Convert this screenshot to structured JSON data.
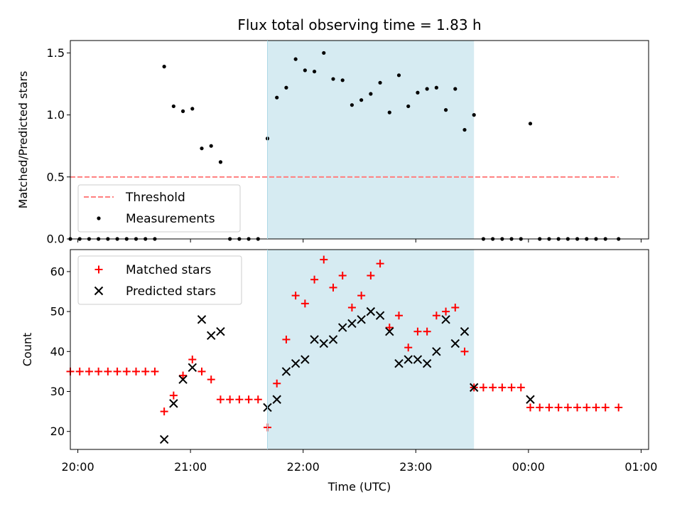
{
  "title": "Flux total observing time = 1.83 h",
  "xlabel": "Time (UTC)",
  "x_ticks": [
    "20:00",
    "21:00",
    "22:00",
    "23:00",
    "00:00",
    "01:00"
  ],
  "colors": {
    "shade": "#add8e6",
    "threshold": "#ff7f7f",
    "measurement": "#000000",
    "matched": "#ff0000",
    "predicted": "#000000"
  },
  "chart_data": [
    {
      "type": "scatter",
      "ylabel": "Matched/Predicted stars",
      "ylim": [
        0,
        1.6
      ],
      "y_ticks": [
        "0.0",
        "0.5",
        "1.0",
        "1.5"
      ],
      "x_range": [
        "19:56",
        "01:04"
      ],
      "shaded_interval": [
        "21:41",
        "23:31"
      ],
      "legend": {
        "placement": "lower-left",
        "items": [
          "Threshold",
          "Measurements"
        ]
      },
      "threshold": {
        "name": "Threshold",
        "value": 0.5,
        "x": [
          "19:56",
          "00:48"
        ]
      },
      "series": [
        {
          "name": "Measurements",
          "x": [
            "19:56",
            "20:01",
            "20:06",
            "20:11",
            "20:16",
            "20:21",
            "20:26",
            "20:31",
            "20:36",
            "20:41",
            "20:46",
            "20:51",
            "20:56",
            "21:01",
            "21:06",
            "21:11",
            "21:16",
            "21:21",
            "21:26",
            "21:31",
            "21:36",
            "21:41",
            "21:46",
            "21:51",
            "21:56",
            "22:01",
            "22:06",
            "22:11",
            "22:16",
            "22:21",
            "22:26",
            "22:31",
            "22:36",
            "22:41",
            "22:46",
            "22:51",
            "22:56",
            "23:01",
            "23:06",
            "23:11",
            "23:16",
            "23:21",
            "23:26",
            "23:31",
            "23:36",
            "23:41",
            "23:46",
            "23:51",
            "23:56",
            "00:01",
            "00:06",
            "00:11",
            "00:16",
            "00:21",
            "00:26",
            "00:31",
            "00:36",
            "00:41",
            "00:48"
          ],
          "y": [
            0,
            0,
            0,
            0,
            0,
            0,
            0,
            0,
            0,
            0,
            1.39,
            1.07,
            1.03,
            1.05,
            0.73,
            0.75,
            0.62,
            0,
            0,
            0,
            0,
            0.81,
            1.14,
            1.22,
            1.45,
            1.36,
            1.35,
            1.5,
            1.29,
            1.28,
            1.08,
            1.12,
            1.17,
            1.26,
            1.02,
            1.32,
            1.07,
            1.18,
            1.21,
            1.22,
            1.04,
            1.21,
            0.88,
            1.0,
            0,
            0,
            0,
            0,
            0,
            0.93,
            0,
            0,
            0,
            0,
            0,
            0,
            0,
            0,
            0
          ]
        }
      ]
    },
    {
      "type": "scatter",
      "ylabel": "Count",
      "ylim": [
        15.5,
        65.5
      ],
      "y_ticks": [
        "20",
        "30",
        "40",
        "50",
        "60"
      ],
      "x_range": [
        "19:56",
        "01:04"
      ],
      "shaded_interval": [
        "21:41",
        "23:31"
      ],
      "legend": {
        "placement": "upper-left",
        "items": [
          "Matched stars",
          "Predicted stars"
        ]
      },
      "series": [
        {
          "name": "Matched stars",
          "x": [
            "19:56",
            "20:01",
            "20:06",
            "20:11",
            "20:16",
            "20:21",
            "20:26",
            "20:31",
            "20:36",
            "20:41",
            "20:46",
            "20:51",
            "20:56",
            "21:01",
            "21:06",
            "21:11",
            "21:16",
            "21:21",
            "21:26",
            "21:31",
            "21:36",
            "21:41",
            "21:46",
            "21:51",
            "21:56",
            "22:01",
            "22:06",
            "22:11",
            "22:16",
            "22:21",
            "22:26",
            "22:31",
            "22:36",
            "22:41",
            "22:46",
            "22:51",
            "22:56",
            "23:01",
            "23:06",
            "23:11",
            "23:16",
            "23:21",
            "23:26",
            "23:31",
            "23:36",
            "23:41",
            "23:46",
            "23:51",
            "23:56",
            "00:01",
            "00:06",
            "00:11",
            "00:16",
            "00:21",
            "00:26",
            "00:31",
            "00:36",
            "00:41",
            "00:48"
          ],
          "y": [
            35,
            35,
            35,
            35,
            35,
            35,
            35,
            35,
            35,
            35,
            25,
            29,
            34,
            38,
            35,
            33,
            28,
            28,
            28,
            28,
            28,
            21,
            32,
            43,
            54,
            52,
            58,
            63,
            56,
            59,
            51,
            54,
            59,
            62,
            46,
            49,
            41,
            45,
            45,
            49,
            50,
            51,
            40,
            31,
            31,
            31,
            31,
            31,
            31,
            26,
            26,
            26,
            26,
            26,
            26,
            26,
            26,
            26,
            26
          ]
        },
        {
          "name": "Predicted stars",
          "x": [
            "20:46",
            "20:51",
            "20:56",
            "21:01",
            "21:06",
            "21:11",
            "21:16",
            "21:41",
            "21:46",
            "21:51",
            "21:56",
            "22:01",
            "22:06",
            "22:11",
            "22:16",
            "22:21",
            "22:26",
            "22:31",
            "22:36",
            "22:41",
            "22:46",
            "22:51",
            "22:56",
            "23:01",
            "23:06",
            "23:11",
            "23:16",
            "23:21",
            "23:26",
            "23:31",
            "00:01"
          ],
          "y": [
            18,
            27,
            33,
            36,
            48,
            44,
            45,
            26,
            28,
            35,
            37,
            38,
            43,
            42,
            43,
            46,
            47,
            48,
            50,
            49,
            45,
            37,
            38,
            38,
            37,
            40,
            48,
            42,
            45,
            31,
            28
          ]
        }
      ]
    }
  ]
}
